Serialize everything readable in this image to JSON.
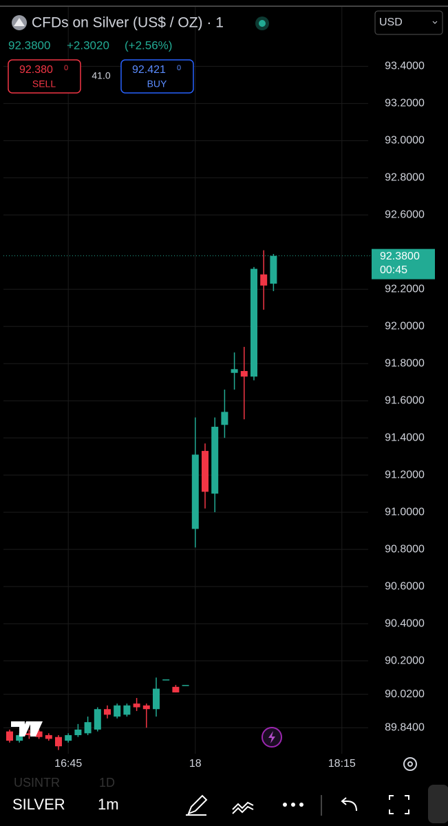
{
  "header": {
    "title": "CFDs on Silver (US$ / OZ) · 1",
    "price": "92.3800",
    "change": "+2.3020",
    "change_pct": "(+2.56%)",
    "sell_price": "92.380",
    "sell_sup": "0",
    "sell_label": "SELL",
    "spread": "41.0",
    "buy_price": "92.421",
    "buy_sup": "0",
    "buy_label": "BUY",
    "currency": "USD"
  },
  "toolbar": {
    "symbol": "SILVER",
    "interval": "1m",
    "faded_symbol": "USINTR",
    "faded_interval": "1D"
  },
  "chart_data": {
    "type": "candlestick",
    "categories": [
      "16:39",
      "16:40",
      "16:41",
      "16:42",
      "16:43",
      "16:44",
      "16:45",
      "16:46",
      "16:47",
      "16:48",
      "16:49",
      "16:50",
      "16:51",
      "16:52",
      "16:53",
      "16:54",
      "16:55",
      "16:56",
      "16:57",
      "18:00",
      "18:01",
      "18:02",
      "18:03",
      "18:04",
      "18:05",
      "18:06",
      "18:07",
      "18:08"
    ],
    "open": [
      89.82,
      89.77,
      89.81,
      89.82,
      89.8,
      89.79,
      89.77,
      89.8,
      89.81,
      89.83,
      89.94,
      89.9,
      89.91,
      89.97,
      89.96,
      89.94,
      90.1,
      90.06,
      90.07,
      90.91,
      91.33,
      91.1,
      91.47,
      91.75,
      91.76,
      91.73,
      92.28,
      92.23
    ],
    "high": [
      89.83,
      89.81,
      89.83,
      89.83,
      89.81,
      89.8,
      89.81,
      89.86,
      89.9,
      89.95,
      89.96,
      89.97,
      89.97,
      90.0,
      89.97,
      90.11,
      90.1,
      90.07,
      90.07,
      91.51,
      91.37,
      91.51,
      91.66,
      91.86,
      91.89,
      92.32,
      92.41,
      92.39
    ],
    "low": [
      89.76,
      89.76,
      89.78,
      89.78,
      89.77,
      89.72,
      89.76,
      89.79,
      89.8,
      89.82,
      89.89,
      89.89,
      89.9,
      89.93,
      89.84,
      89.9,
      90.1,
      90.03,
      90.07,
      90.81,
      91.02,
      91.0,
      91.4,
      91.66,
      91.5,
      91.71,
      92.09,
      92.19
    ],
    "close": [
      89.77,
      89.8,
      89.8,
      89.79,
      89.78,
      89.74,
      89.8,
      89.83,
      89.87,
      89.94,
      89.91,
      89.96,
      89.96,
      89.95,
      89.94,
      90.05,
      90.1,
      90.03,
      90.07,
      91.31,
      91.11,
      91.46,
      91.54,
      91.77,
      91.73,
      92.31,
      92.22,
      92.38
    ],
    "up_color": "#22ab94",
    "down_color": "#f23645",
    "ylim": [
      89.7,
      93.72
    ],
    "yticks": [
      {
        "value": 89.84,
        "label": "89.8400"
      },
      {
        "value": 90.02,
        "label": "90.0200"
      },
      {
        "value": 90.2,
        "label": "90.2000"
      },
      {
        "value": 90.4,
        "label": "90.4000"
      },
      {
        "value": 90.6,
        "label": "90.6000"
      },
      {
        "value": 90.8,
        "label": "90.8000"
      },
      {
        "value": 91.0,
        "label": "91.0000"
      },
      {
        "value": 91.2,
        "label": "91.2000"
      },
      {
        "value": 91.4,
        "label": "91.4000"
      },
      {
        "value": 91.6,
        "label": "91.6000"
      },
      {
        "value": 91.8,
        "label": "91.8000"
      },
      {
        "value": 92.0,
        "label": "92.0000"
      },
      {
        "value": 92.2,
        "label": "92.2000"
      },
      {
        "value": 92.6,
        "label": "92.6000"
      },
      {
        "value": 92.8,
        "label": "92.8000"
      },
      {
        "value": 93.0,
        "label": "93.0000"
      },
      {
        "value": 93.2,
        "label": "93.2000"
      },
      {
        "value": 93.4,
        "label": "93.4000"
      }
    ],
    "xticks": [
      "16:45",
      {
        "value": "18:00",
        "label": "18"
      },
      "18:15"
    ],
    "last_price": {
      "value": 92.38,
      "label": "92.3800"
    },
    "countdown": "00:45",
    "grid": true
  }
}
